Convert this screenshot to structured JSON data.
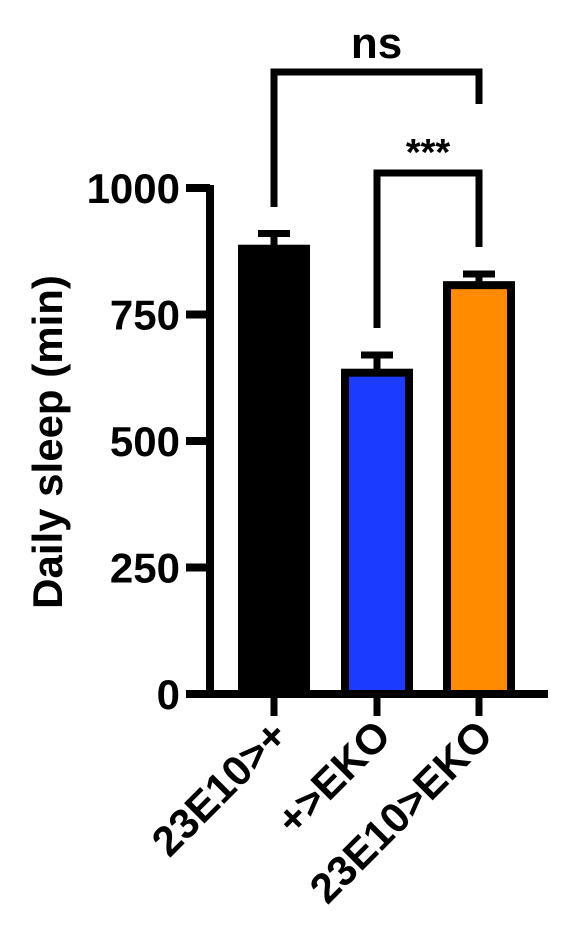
{
  "chart_data": {
    "type": "bar",
    "title": "",
    "xlabel": "",
    "ylabel": "Daily sleep (min)",
    "ylim": [
      0,
      1000
    ],
    "yticks": [
      0,
      250,
      500,
      750,
      1000
    ],
    "ytick_labels": [
      "0",
      "250",
      "500",
      "750",
      "1000"
    ],
    "categories": [
      "23E10>+",
      "+>EKO",
      "23E10>EKO"
    ],
    "values": [
      880,
      635,
      808
    ],
    "errors": [
      30,
      35,
      22
    ],
    "colors": [
      "#000000",
      "#1b3cff",
      "#ff8c00"
    ],
    "edge_color": "#000000",
    "significance": [
      {
        "from": 0,
        "to": 2,
        "label": "ns"
      },
      {
        "from": 1,
        "to": 2,
        "label": "***"
      }
    ]
  }
}
